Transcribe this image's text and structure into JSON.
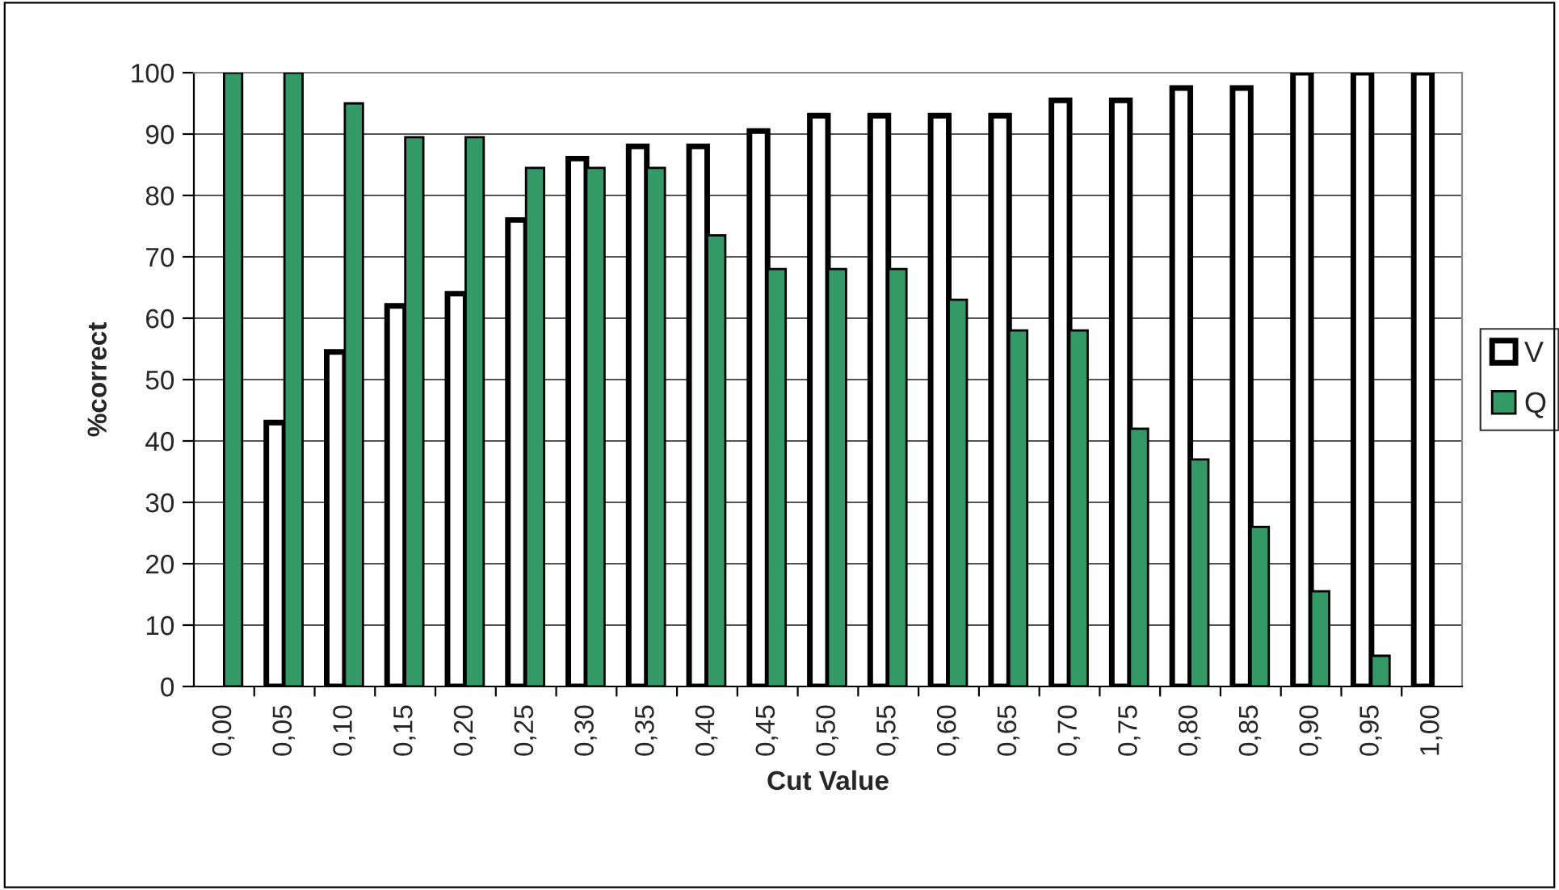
{
  "chart_data": {
    "type": "bar",
    "xlabel": "Cut Value",
    "ylabel": "%correct",
    "categories": [
      "0,00",
      "0,05",
      "0,10",
      "0,15",
      "0,20",
      "0,25",
      "0,30",
      "0,35",
      "0,40",
      "0,45",
      "0,50",
      "0,55",
      "0,60",
      "0,65",
      "0,70",
      "0,75",
      "0,80",
      "0,85",
      "0,90",
      "0,95",
      "1,00"
    ],
    "series": [
      {
        "name": "V",
        "color": "#ffffff",
        "values": [
          null,
          43,
          54.5,
          62,
          64,
          76,
          86,
          88,
          88,
          90.5,
          93,
          93,
          93,
          93,
          95.5,
          95.5,
          97.5,
          97.5,
          100,
          100,
          100
        ]
      },
      {
        "name": "Q",
        "color": "#339966",
        "values": [
          100,
          100,
          95,
          89.5,
          89.5,
          84.5,
          84.5,
          84.5,
          73.5,
          68,
          68,
          68,
          63,
          58,
          58,
          42,
          37,
          26,
          15.5,
          5,
          null
        ]
      }
    ],
    "ylim": [
      0,
      100
    ],
    "yticks": [
      0,
      10,
      20,
      30,
      40,
      50,
      60,
      70,
      80,
      90,
      100
    ],
    "grid": "y",
    "legend": "right"
  }
}
